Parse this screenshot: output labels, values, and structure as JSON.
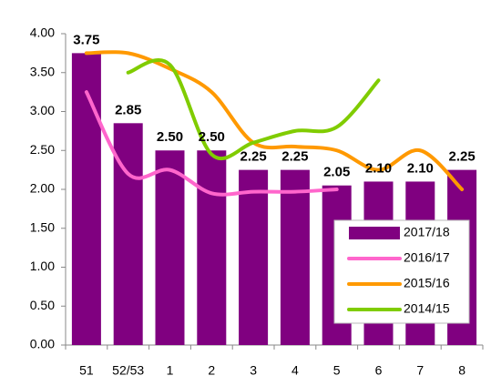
{
  "chart_data": {
    "type": "bar",
    "categories": [
      "51",
      "52/53",
      "1",
      "2",
      "3",
      "4",
      "5",
      "6",
      "7",
      "8"
    ],
    "series": [
      {
        "name": "2017/18",
        "color": "#800080",
        "type": "bar",
        "values": [
          3.75,
          2.85,
          2.5,
          2.5,
          2.25,
          2.25,
          2.05,
          2.1,
          2.1,
          2.25
        ],
        "value_labels": [
          "3.75",
          "2.85",
          "2.50",
          "2.50",
          "2.25",
          "2.25",
          "2.05",
          "2.10",
          "2.10",
          "2.25"
        ]
      },
      {
        "name": "2016/17",
        "color": "#ff66cc",
        "type": "line",
        "values": [
          3.25,
          2.2,
          2.25,
          1.95,
          1.97,
          1.97,
          2.0,
          null,
          null,
          null
        ]
      },
      {
        "name": "2015/16",
        "color": "#ff9900",
        "type": "line",
        "values": [
          3.75,
          3.75,
          3.55,
          3.25,
          2.6,
          2.55,
          2.5,
          2.25,
          2.5,
          2.0
        ]
      },
      {
        "name": "2014/15",
        "color": "#80cc00",
        "type": "line",
        "values": [
          null,
          3.5,
          3.6,
          2.45,
          2.6,
          2.75,
          2.8,
          3.4,
          null,
          null
        ]
      }
    ],
    "ylim": [
      0,
      4
    ],
    "yticks": [
      {
        "value": 0,
        "label": "0.00"
      },
      {
        "value": 0.5,
        "label": "0.50"
      },
      {
        "value": 1,
        "label": "1.00"
      },
      {
        "value": 1.5,
        "label": "1.50"
      },
      {
        "value": 2,
        "label": "2.00"
      },
      {
        "value": 2.5,
        "label": "2.50"
      },
      {
        "value": 3,
        "label": "3.00"
      },
      {
        "value": 3.5,
        "label": "3.50"
      },
      {
        "value": 4,
        "label": "4.00"
      }
    ],
    "legend": "lower right"
  }
}
